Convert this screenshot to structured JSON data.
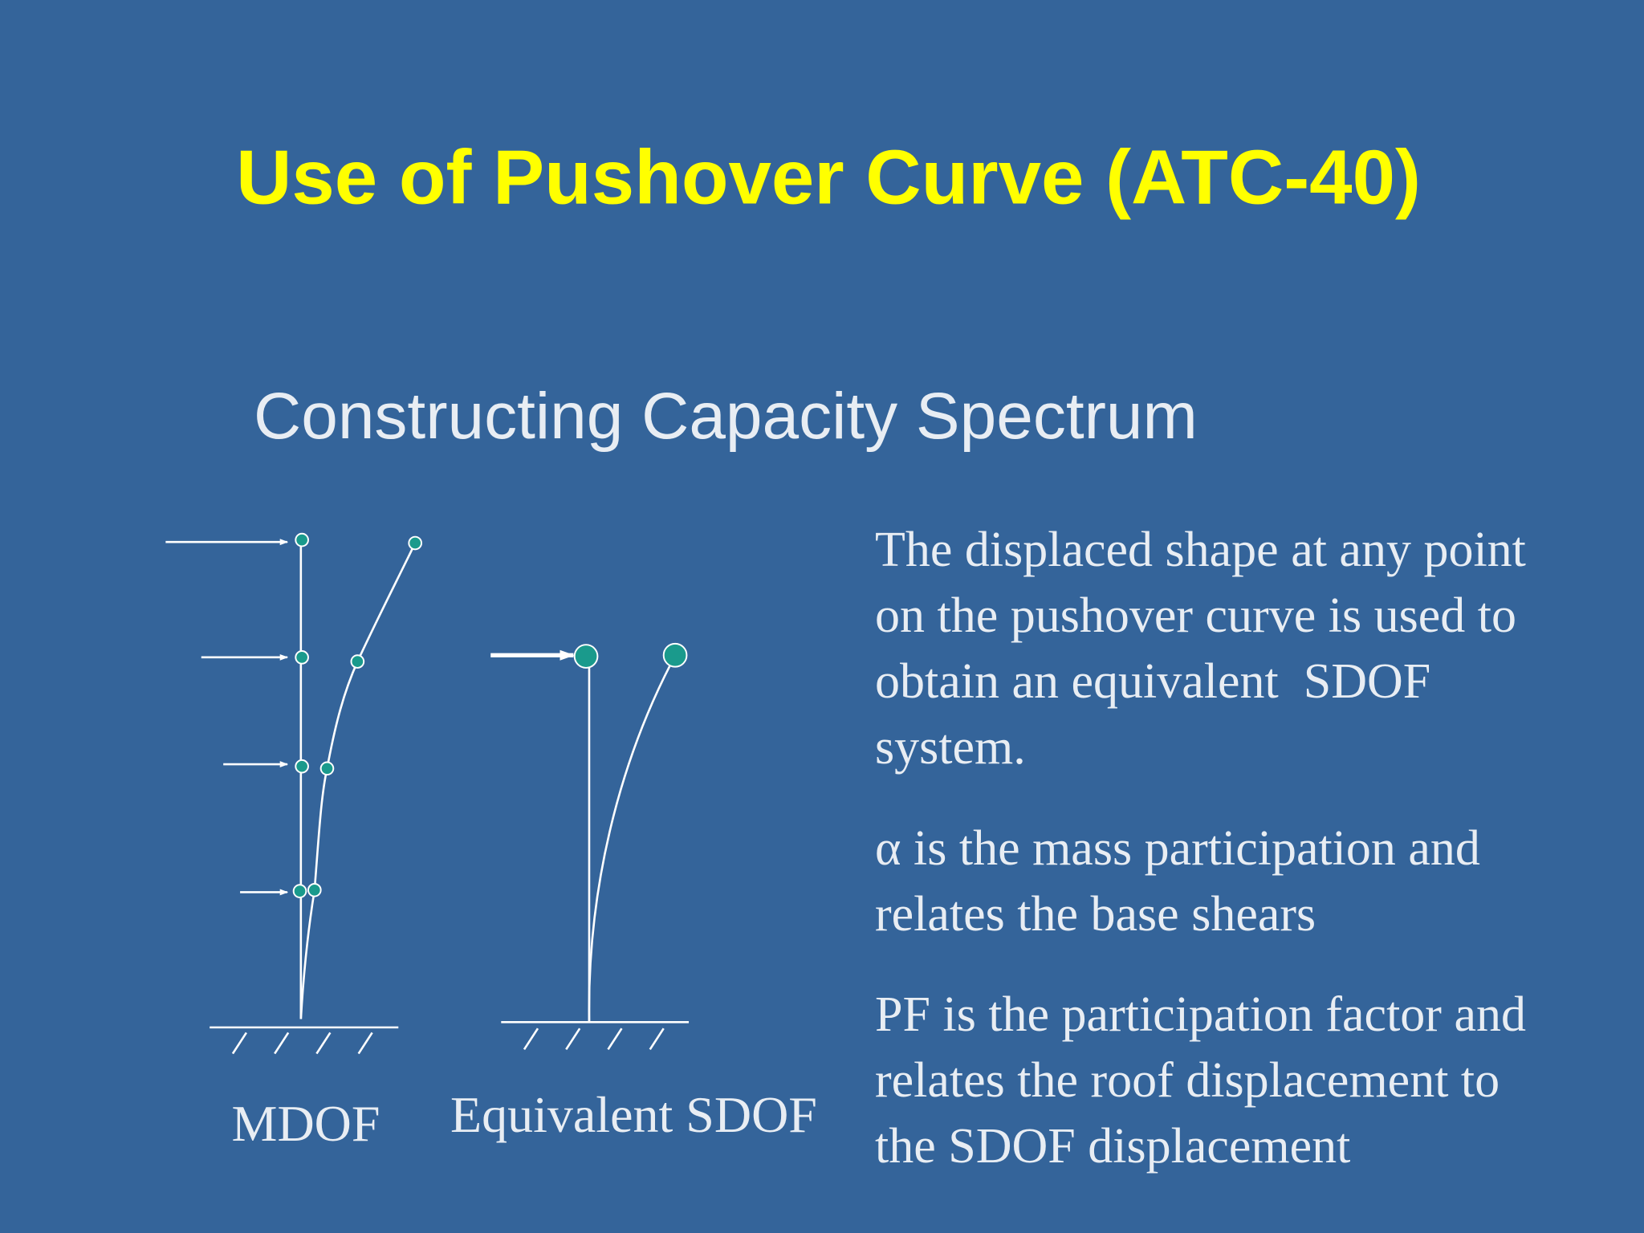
{
  "slide": {
    "title": "Use of Pushover Curve (ATC-40)",
    "subtitle": "Constructing Capacity Spectrum",
    "diagram": {
      "mdof_label": "MDOF",
      "sdof_label": "Equivalent SDOF"
    },
    "paragraphs": [
      [
        "The displaced shape at any point",
        "on the pushover curve is used to",
        "obtain an equivalent  SDOF",
        "system."
      ],
      [
        "α is the mass participation and",
        "relates the base shears"
      ],
      [
        "PF is the participation factor and",
        "relates the roof displacement to",
        "the SDOF displacement"
      ]
    ]
  }
}
